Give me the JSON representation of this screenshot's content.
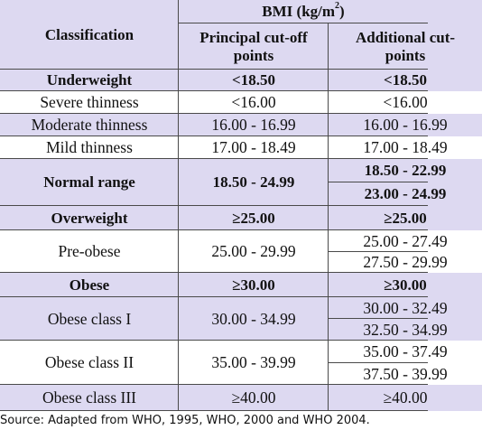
{
  "header": {
    "group_title": "BMI (kg/m",
    "group_title_sup": "2",
    "group_title_end": ")",
    "classification": "Classification",
    "principal": [
      "Principal cut-off",
      "points"
    ],
    "additional": [
      "Additional cut-",
      "points"
    ]
  },
  "rows": [
    {
      "label": "Underweight",
      "principal": "<18.50",
      "additional": [
        "<18.50"
      ]
    },
    {
      "label": "Severe thinness",
      "principal": "<16.00",
      "additional": [
        "<16.00"
      ]
    },
    {
      "label": "Moderate thinness",
      "principal": "16.00 - 16.99",
      "additional": [
        "16.00 - 16.99"
      ]
    },
    {
      "label": "Mild thinness",
      "principal": "17.00 - 18.49",
      "additional": [
        "17.00 - 18.49"
      ]
    },
    {
      "label": "Normal range",
      "principal": "18.50 - 24.99",
      "additional": [
        "18.50 - 22.99",
        "23.00 - 24.99"
      ]
    },
    {
      "label": "Overweight",
      "principal": "≥25.00",
      "additional": [
        "≥25.00"
      ]
    },
    {
      "label": "Pre-obese",
      "principal": "25.00 - 29.99",
      "additional": [
        "25.00 - 27.49",
        "27.50 - 29.99"
      ]
    },
    {
      "label": "Obese",
      "principal": "≥30.00",
      "additional": [
        "≥30.00"
      ]
    },
    {
      "label": "Obese class I",
      "principal": "30.00 - 34.99",
      "additional": [
        "30.00 - 32.49",
        "32.50 - 34.99"
      ]
    },
    {
      "label": "Obese class II",
      "principal": "35.00 - 39.99",
      "additional": [
        "35.00 - 37.49",
        "37.50 - 39.99"
      ]
    },
    {
      "label": "Obese class III",
      "principal": "≥40.00",
      "additional": [
        "≥40.00"
      ]
    }
  ],
  "source": "Source: Adapted from WHO, 1995, WHO, 2000 and WHO 2004.",
  "colors": {
    "lavender": "#ddd9f1",
    "white": "#ffffff",
    "rule": "#4a4a4a"
  }
}
